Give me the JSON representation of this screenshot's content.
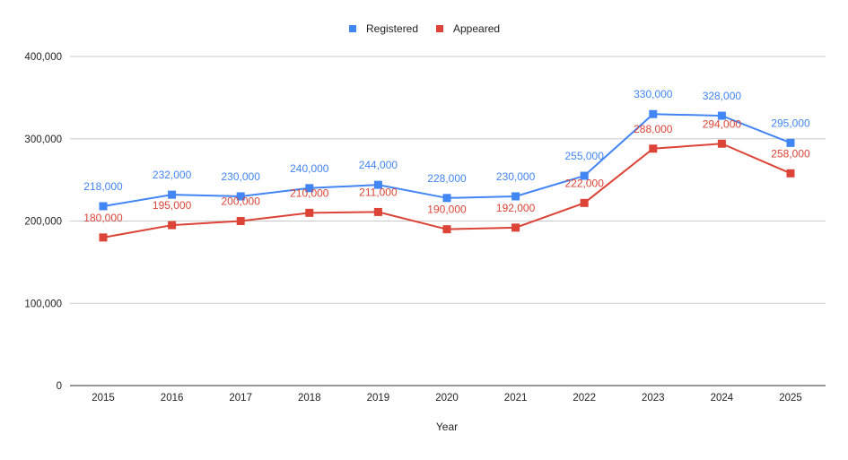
{
  "chart_data": {
    "type": "line",
    "title": "",
    "xlabel": "Year",
    "ylabel": "",
    "categories": [
      "2015",
      "2016",
      "2017",
      "2018",
      "2019",
      "2020",
      "2021",
      "2022",
      "2023",
      "2024",
      "2025"
    ],
    "series": [
      {
        "name": "Registered",
        "color": "#4285f4",
        "values": [
          218000,
          232000,
          230000,
          240000,
          244000,
          228000,
          230000,
          255000,
          330000,
          328000,
          295000
        ],
        "labels": [
          "218,000",
          "232,000",
          "230,000",
          "240,000",
          "244,000",
          "228,000",
          "230,000",
          "255,000",
          "330,000",
          "328,000",
          "295,000"
        ]
      },
      {
        "name": "Appeared",
        "color": "#db4437",
        "values": [
          180000,
          195000,
          200000,
          210000,
          211000,
          190000,
          192000,
          222000,
          288000,
          294000,
          258000
        ],
        "labels": [
          "180,000",
          "195,000",
          "200,000",
          "210,000",
          "211,000",
          "190,000",
          "192,000",
          "222,000",
          "288,000",
          "294,000",
          "258,000"
        ]
      }
    ],
    "ylim": [
      0,
      400000
    ],
    "yticks": [
      "0",
      "100,000",
      "200,000",
      "300,000",
      "400,000"
    ],
    "grid": true,
    "legend": "top",
    "marker": "square"
  }
}
